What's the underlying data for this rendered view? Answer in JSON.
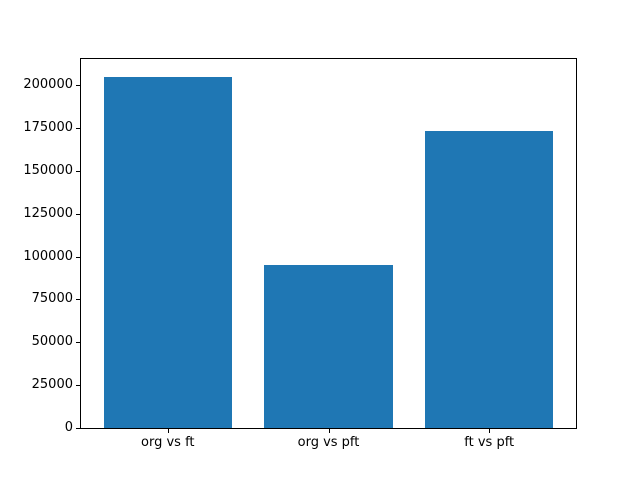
{
  "figure": {
    "background": "#ffffff"
  },
  "chart_data": {
    "type": "bar",
    "title": "",
    "xlabel": "",
    "ylabel": "",
    "categories": [
      "org vs ft",
      "org vs pft",
      "ft vs pft"
    ],
    "values": [
      205000,
      95000,
      173500
    ],
    "yticks": [
      0,
      25000,
      50000,
      75000,
      100000,
      125000,
      150000,
      175000,
      200000
    ],
    "ylim": [
      0,
      215250
    ],
    "grid": false,
    "legend": "none",
    "bar_color": "#1f77b4",
    "axis_color": "#000000",
    "bar_width_fraction": 0.8
  }
}
